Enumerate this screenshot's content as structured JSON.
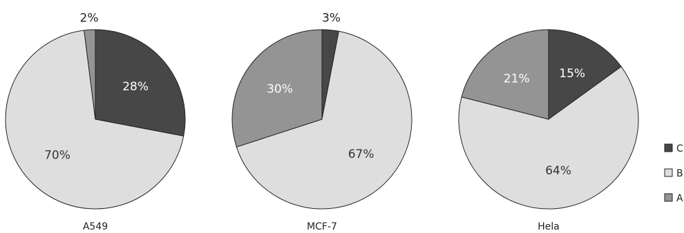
{
  "chart_data": [
    {
      "type": "pie",
      "title": "A549",
      "slices": [
        {
          "name": "C",
          "value": 28,
          "label": "28%"
        },
        {
          "name": "B",
          "value": 70,
          "label": "70%"
        },
        {
          "name": "A",
          "value": 2,
          "label": "2%"
        }
      ]
    },
    {
      "type": "pie",
      "title": "MCF-7",
      "slices": [
        {
          "name": "C",
          "value": 3,
          "label": "3%"
        },
        {
          "name": "B",
          "value": 67,
          "label": "67%"
        },
        {
          "name": "A",
          "value": 30,
          "label": "30%"
        }
      ]
    },
    {
      "type": "pie",
      "title": "Hela",
      "slices": [
        {
          "name": "C",
          "value": 15,
          "label": "15%"
        },
        {
          "name": "B",
          "value": 64,
          "label": "64%"
        },
        {
          "name": "A",
          "value": 21,
          "label": "21%"
        }
      ]
    }
  ],
  "legend": {
    "placement": "right",
    "items": [
      {
        "name": "C",
        "color": "#474747"
      },
      {
        "name": "B",
        "color": "#dedede"
      },
      {
        "name": "A",
        "color": "#949494"
      }
    ]
  }
}
